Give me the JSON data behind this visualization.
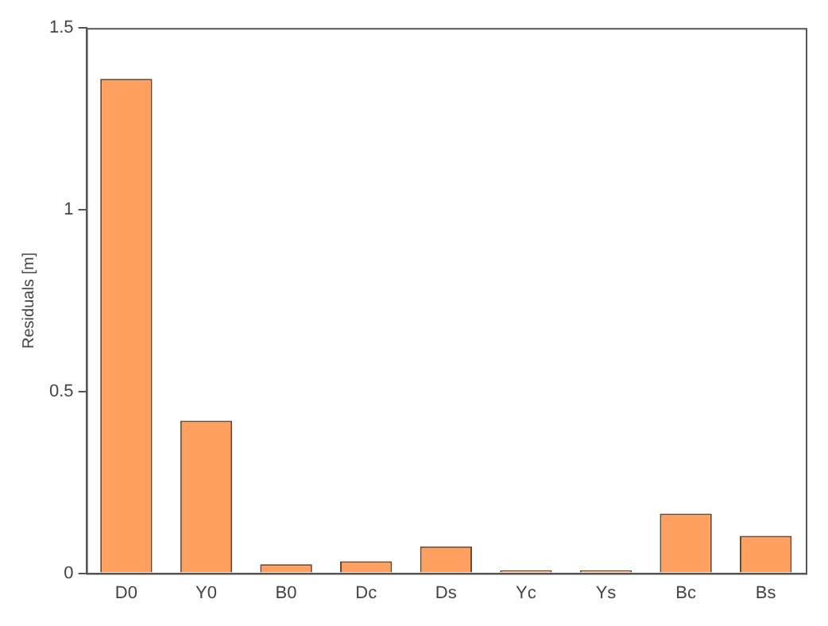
{
  "chart_data": {
    "type": "bar",
    "ylabel": "Residuals [m]",
    "categories": [
      "D0",
      "Y0",
      "B0",
      "Dc",
      "Ds",
      "Yc",
      "Ys",
      "Bc",
      "Bs"
    ],
    "values": [
      1.36,
      0.42,
      0.025,
      0.033,
      0.074,
      0.008,
      0.008,
      0.164,
      0.103
    ],
    "color": "#ffa060",
    "ylim": [
      0,
      1.5
    ],
    "yticks": [
      0,
      0.5,
      1,
      1.5
    ],
    "grid": false,
    "legend": false
  }
}
